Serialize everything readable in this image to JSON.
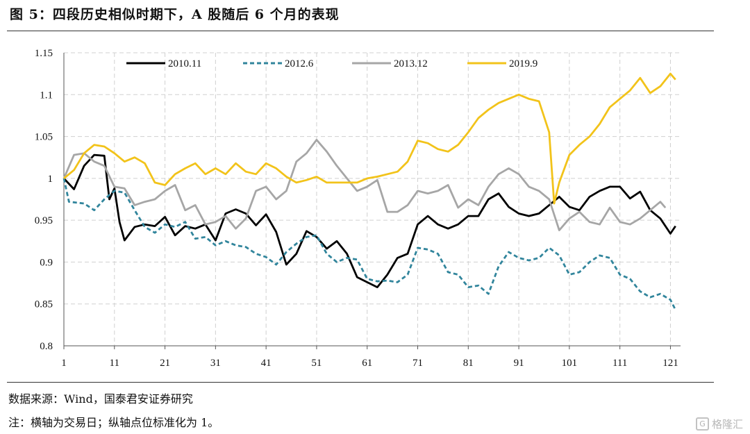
{
  "header": {
    "title": "图 5：四段历史相似时期下，A 股随后 6 个月的表现"
  },
  "footer": {
    "source": "数据来源：Wind，国泰君安证券研究",
    "note": "注：横轴为交易日；纵轴点位标准化为 1。"
  },
  "watermark": {
    "label": "格隆汇",
    "icon": "gelonghui-logo"
  },
  "chart_data": {
    "type": "line",
    "title": "",
    "xlabel": "",
    "ylabel": "",
    "xlim": [
      1,
      123
    ],
    "ylim": [
      0.8,
      1.15
    ],
    "x_ticks": [
      1,
      11,
      21,
      31,
      41,
      51,
      61,
      71,
      81,
      91,
      101,
      111,
      121
    ],
    "y_ticks": [
      0.8,
      0.85,
      0.9,
      0.95,
      1,
      1.05,
      1.1,
      1.15
    ],
    "x_tick_labels": [
      "1",
      "11",
      "21",
      "31",
      "41",
      "51",
      "61",
      "71",
      "81",
      "91",
      "101",
      "111",
      "121"
    ],
    "y_tick_labels": [
      "0.8",
      "0.85",
      "0.9",
      "0.95",
      "1",
      "1.05",
      "1.1",
      "1.15"
    ],
    "grid": "horizontal + vertical dashed",
    "legend": "top",
    "series": [
      {
        "name": "2010.11",
        "color": "#000000",
        "dash": "solid",
        "x": [
          1,
          3,
          5,
          7,
          9,
          10,
          11,
          12,
          13,
          15,
          17,
          19,
          21,
          23,
          25,
          27,
          29,
          31,
          33,
          35,
          37,
          39,
          41,
          43,
          45,
          47,
          49,
          51,
          53,
          55,
          57,
          59,
          61,
          63,
          65,
          67,
          69,
          71,
          73,
          75,
          77,
          79,
          81,
          83,
          85,
          87,
          89,
          91,
          93,
          95,
          97,
          99,
          101,
          103,
          105,
          107,
          109,
          111,
          113,
          115,
          117,
          119,
          121,
          122
        ],
        "y": [
          1.0,
          0.987,
          1.015,
          1.028,
          1.027,
          0.975,
          0.988,
          0.948,
          0.926,
          0.942,
          0.945,
          0.943,
          0.954,
          0.932,
          0.943,
          0.94,
          0.945,
          0.926,
          0.958,
          0.963,
          0.958,
          0.944,
          0.957,
          0.936,
          0.897,
          0.91,
          0.937,
          0.93,
          0.916,
          0.925,
          0.91,
          0.882,
          0.876,
          0.87,
          0.885,
          0.905,
          0.91,
          0.945,
          0.955,
          0.945,
          0.94,
          0.945,
          0.955,
          0.955,
          0.975,
          0.982,
          0.966,
          0.958,
          0.955,
          0.958,
          0.968,
          0.978,
          0.966,
          0.962,
          0.978,
          0.985,
          0.99,
          0.99,
          0.976,
          0.984,
          0.962,
          0.952,
          0.934,
          0.943
        ]
      },
      {
        "name": "2012.6",
        "color": "#31859c",
        "dash": "dashed",
        "x": [
          1,
          2,
          5,
          7,
          9,
          11,
          13,
          15,
          17,
          19,
          21,
          23,
          25,
          27,
          29,
          31,
          33,
          35,
          37,
          39,
          41,
          43,
          45,
          47,
          49,
          51,
          53,
          55,
          57,
          59,
          61,
          63,
          65,
          67,
          69,
          71,
          73,
          75,
          77,
          79,
          81,
          83,
          85,
          87,
          89,
          91,
          93,
          95,
          97,
          99,
          101,
          103,
          105,
          107,
          109,
          111,
          113,
          115,
          117,
          119,
          121,
          122
        ],
        "y": [
          1.0,
          0.972,
          0.97,
          0.962,
          0.975,
          0.985,
          0.983,
          0.962,
          0.942,
          0.935,
          0.945,
          0.942,
          0.948,
          0.928,
          0.93,
          0.92,
          0.925,
          0.92,
          0.918,
          0.91,
          0.906,
          0.897,
          0.912,
          0.922,
          0.93,
          0.932,
          0.91,
          0.9,
          0.905,
          0.903,
          0.88,
          0.877,
          0.878,
          0.876,
          0.885,
          0.917,
          0.915,
          0.91,
          0.888,
          0.885,
          0.87,
          0.872,
          0.862,
          0.895,
          0.912,
          0.905,
          0.902,
          0.905,
          0.917,
          0.908,
          0.885,
          0.888,
          0.9,
          0.908,
          0.905,
          0.885,
          0.88,
          0.865,
          0.858,
          0.862,
          0.855,
          0.843
        ]
      },
      {
        "name": "2013.12",
        "color": "#a6a6a6",
        "dash": "solid",
        "x": [
          1,
          3,
          5,
          7,
          9,
          11,
          13,
          15,
          17,
          19,
          21,
          23,
          25,
          27,
          29,
          31,
          33,
          35,
          37,
          39,
          41,
          43,
          45,
          47,
          49,
          51,
          53,
          55,
          57,
          59,
          61,
          63,
          65,
          67,
          69,
          71,
          73,
          75,
          77,
          79,
          81,
          83,
          85,
          87,
          89,
          91,
          93,
          95,
          97,
          99,
          101,
          103,
          105,
          107,
          109,
          111,
          113,
          115,
          117,
          119,
          120
        ],
        "y": [
          1.0,
          1.028,
          1.03,
          1.02,
          1.015,
          0.99,
          0.988,
          0.968,
          0.972,
          0.975,
          0.985,
          0.992,
          0.962,
          0.968,
          0.945,
          0.948,
          0.955,
          0.94,
          0.952,
          0.985,
          0.99,
          0.975,
          0.985,
          1.02,
          1.03,
          1.046,
          1.032,
          1.015,
          1.0,
          0.985,
          0.99,
          0.998,
          0.96,
          0.96,
          0.968,
          0.985,
          0.982,
          0.985,
          0.992,
          0.965,
          0.975,
          0.968,
          0.99,
          1.005,
          1.012,
          1.005,
          0.99,
          0.985,
          0.975,
          0.938,
          0.952,
          0.96,
          0.948,
          0.945,
          0.965,
          0.948,
          0.945,
          0.952,
          0.962,
          0.972,
          0.965
        ]
      },
      {
        "name": "2019.9",
        "color": "#f2c31a",
        "dash": "solid",
        "x": [
          1,
          3,
          5,
          7,
          9,
          11,
          13,
          15,
          17,
          19,
          21,
          23,
          25,
          27,
          29,
          31,
          33,
          35,
          37,
          39,
          41,
          43,
          45,
          47,
          49,
          51,
          53,
          55,
          57,
          59,
          61,
          63,
          65,
          67,
          69,
          71,
          73,
          75,
          77,
          79,
          81,
          83,
          85,
          87,
          89,
          91,
          93,
          95,
          97,
          98,
          99,
          101,
          103,
          105,
          107,
          109,
          111,
          113,
          115,
          117,
          119,
          121,
          122
        ],
        "y": [
          1.0,
          1.01,
          1.03,
          1.04,
          1.038,
          1.03,
          1.02,
          1.025,
          1.018,
          0.995,
          0.992,
          1.005,
          1.012,
          1.018,
          1.005,
          1.012,
          1.005,
          1.018,
          1.008,
          1.005,
          1.018,
          1.012,
          1.002,
          0.995,
          0.998,
          1.002,
          0.995,
          0.995,
          0.995,
          0.995,
          1.0,
          1.002,
          1.005,
          1.008,
          1.02,
          1.045,
          1.042,
          1.035,
          1.032,
          1.04,
          1.055,
          1.072,
          1.082,
          1.09,
          1.095,
          1.1,
          1.095,
          1.092,
          1.055,
          0.97,
          0.995,
          1.028,
          1.04,
          1.05,
          1.065,
          1.085,
          1.095,
          1.105,
          1.12,
          1.102,
          1.11,
          1.125,
          1.118
        ]
      }
    ]
  }
}
